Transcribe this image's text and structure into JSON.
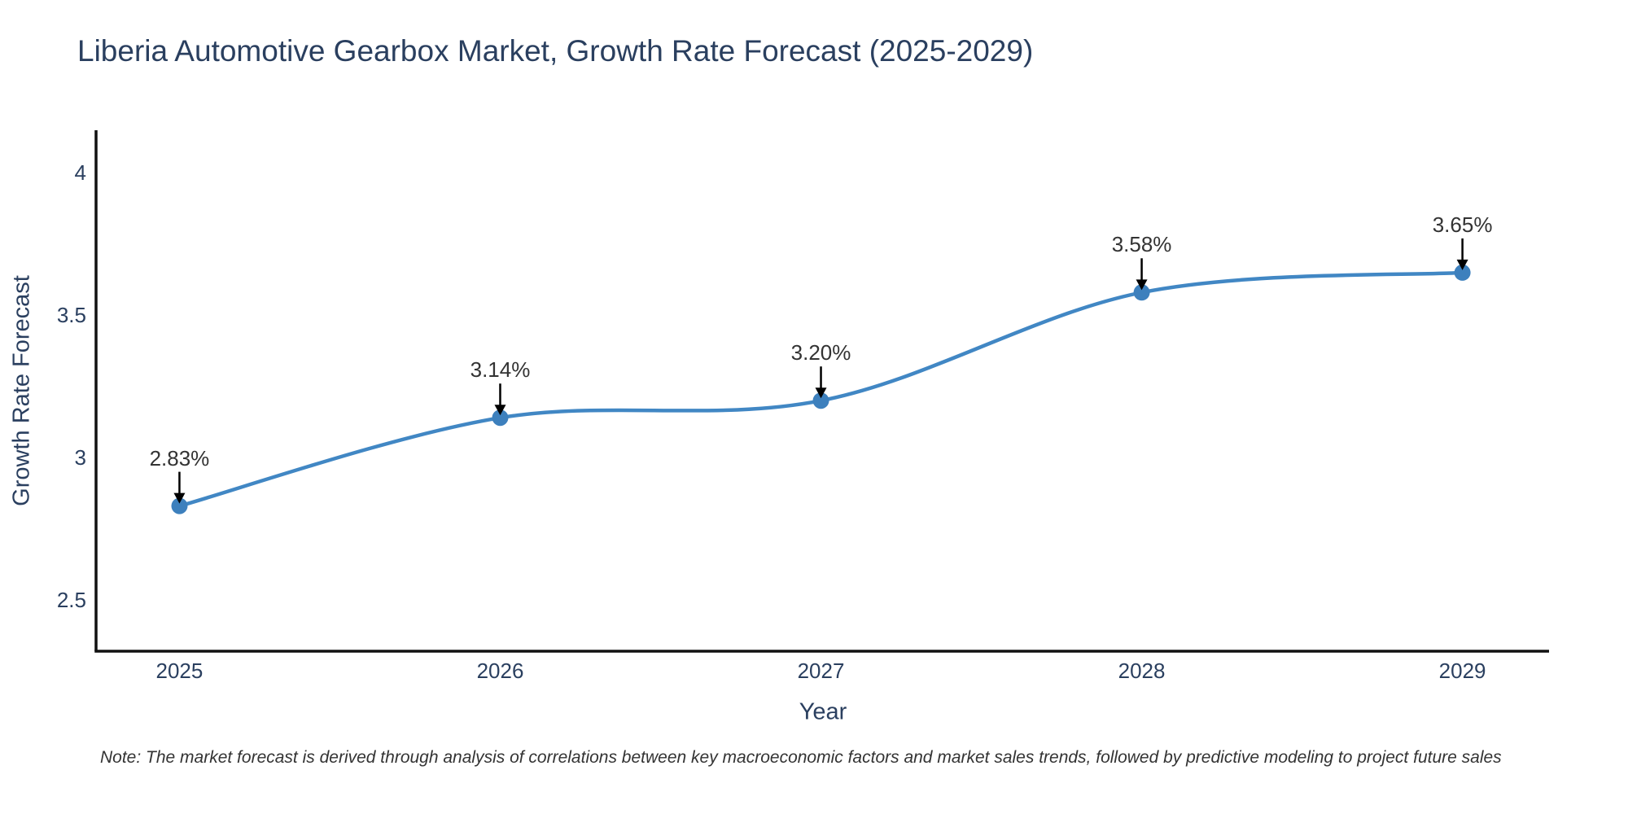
{
  "title": "Liberia Automotive Gearbox Market, Growth Rate Forecast (2025-2029)",
  "note": "Note: The market forecast is derived through analysis of correlations between key macroeconomic factors and market sales trends, followed by predictive modeling to project future sales",
  "chart_data": {
    "type": "line",
    "title": "Liberia Automotive Gearbox Market, Growth Rate Forecast (2025-2029)",
    "xlabel": "Year",
    "ylabel": "Growth Rate Forecast",
    "x": [
      2025,
      2026,
      2027,
      2028,
      2029
    ],
    "x_tick_labels": [
      "2025",
      "2026",
      "2027",
      "2028",
      "2029"
    ],
    "series": [
      {
        "name": "Growth Rate Forecast",
        "values": [
          2.83,
          3.14,
          3.2,
          3.58,
          3.65
        ]
      }
    ],
    "point_labels": [
      "2.83%",
      "3.14%",
      "3.20%",
      "3.58%",
      "3.65%"
    ],
    "y_ticks": [
      {
        "value": 4,
        "label": "4"
      },
      {
        "value": 3.5,
        "label": "3.5"
      },
      {
        "value": 3,
        "label": "3"
      },
      {
        "value": 2.5,
        "label": "2.5"
      }
    ],
    "xlim": [
      2024.74,
      2029.27
    ],
    "ylim": [
      2.32,
      4.15
    ],
    "grid": false,
    "legend": false,
    "line_shape": "spline",
    "colors": {
      "line": "#4187c4",
      "marker": "#3d80bd",
      "annotation_arrow": "#000000",
      "axis": "#111111",
      "text": "#2a3f5f",
      "note_text": "#333333"
    }
  }
}
